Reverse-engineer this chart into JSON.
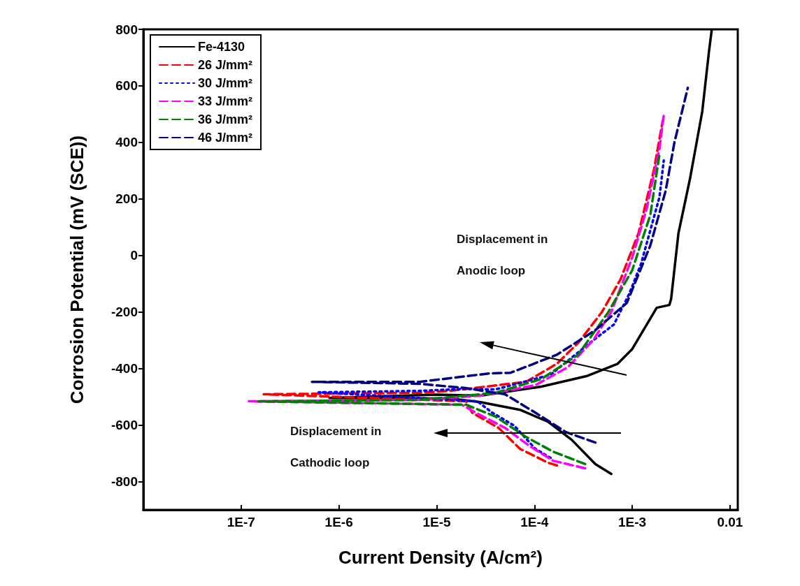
{
  "chart_data": {
    "type": "line",
    "xlabel": "Current Density (A/cm²)",
    "ylabel": "Corrosion Potential (mV (SCE))",
    "log": "x",
    "xlim": [
      1e-08,
      0.012
    ],
    "xticks": [
      {
        "value": 1e-07,
        "label": "1E-7"
      },
      {
        "value": 1e-06,
        "label": "1E-6"
      },
      {
        "value": 1e-05,
        "label": "1E-5"
      },
      {
        "value": 0.0001,
        "label": "1E-4"
      },
      {
        "value": 0.001,
        "label": "1E-3"
      },
      0.01
    ],
    "ylim": [
      -900,
      800
    ],
    "yticks": [
      -800,
      -600,
      -400,
      -200,
      0,
      200,
      400,
      600,
      800
    ],
    "grid": false,
    "legend": "top left",
    "marker": "none",
    "annotations": [
      "Displacement in",
      "Anodic loop",
      "Displacement in",
      "Cathodic loop"
    ],
    "series": [
      {
        "name": "Fe-4130",
        "color": "#000000",
        "line_style": "solid",
        "x": [
          0.00061,
          0.00042,
          0.00024,
          0.000137,
          7.1e-05,
          2.8e-05,
          1.37e-05,
          8e-07,
          1e-05,
          2.8e-05,
          0.000118,
          0.00034,
          0.00071,
          0.001,
          0.00178,
          0.0024,
          0.0025,
          0.00297,
          0.0039,
          0.0052,
          0.0061,
          0.0065
        ],
        "values": [
          -773,
          -738,
          -652,
          -588,
          -546,
          -519,
          -506,
          -504,
          -492,
          -496,
          -464,
          -427,
          -383,
          -331,
          -185,
          -175,
          -153,
          79,
          272,
          509,
          723,
          798
        ]
      },
      {
        "name": "26 J/mm²",
        "color": "#ff0000",
        "line_style": "dashed",
        "x": [
          0.00017,
          0.000137,
          7.1e-05,
          4.3e-05,
          2.3e-05,
          2e-05,
          1.7e-07,
          6.7e-06,
          1.37e-05,
          8.2e-05,
          0.00017,
          0.00028,
          0.00049,
          0.00076,
          0.00116,
          0.00167,
          0.00205
        ],
        "values": [
          -743,
          -733,
          -684,
          -610,
          -556,
          -516,
          -491,
          -486,
          -479,
          -447,
          -383,
          -309,
          -200,
          -84,
          79,
          304,
          477
        ]
      },
      {
        "name": "30 J/mm²",
        "color": "#0000ff",
        "line_style": "dotted",
        "x": [
          0.000146,
          0.000102,
          6.2e-05,
          3.7e-05,
          2.6e-05,
          6.2e-07,
          6.7e-06,
          1.9e-05,
          4e-05,
          0.000146,
          0.00037,
          0.00065,
          0.00093,
          0.00123,
          0.00153,
          0.0019,
          0.0021
        ],
        "values": [
          -716,
          -684,
          -602,
          -556,
          -516,
          -484,
          -479,
          -472,
          -474,
          -422,
          -309,
          -244,
          -136,
          -30,
          89,
          207,
          336
        ]
      },
      {
        "name": "33 J/mm²",
        "color": "#ff00ff",
        "line_style": "dashed",
        "x": [
          0.00033,
          0.000155,
          8.9e-05,
          5e-05,
          2.8e-05,
          1.8e-05,
          1.2e-07,
          6.7e-06,
          2.8e-05,
          0.000102,
          0.00022,
          0.0004,
          0.00061,
          0.001,
          0.0014,
          0.0019,
          0.0021
        ],
        "values": [
          -753,
          -726,
          -674,
          -610,
          -565,
          -528,
          -516,
          -511,
          -496,
          -459,
          -395,
          -299,
          -200,
          -7,
          163,
          378,
          496
        ]
      },
      {
        "name": "36 J/mm²",
        "color": "#008000",
        "line_style": "dashed",
        "x": [
          0.00033,
          0.000155,
          8.2e-05,
          4e-05,
          2e-05,
          1.5e-07,
          6.7e-06,
          4e-05,
          0.000118,
          0.00028,
          0.00057,
          0.001,
          0.00153,
          0.00178,
          0.0019
        ],
        "values": [
          -738,
          -694,
          -642,
          -570,
          -528,
          -516,
          -511,
          -486,
          -437,
          -351,
          -200,
          -52,
          143,
          294,
          358
        ]
      },
      {
        "name": "46 J/mm²",
        "color": "#000080",
        "line_style": "dashed",
        "x": [
          0.00042,
          0.00021,
          0.000102,
          5e-05,
          1.96e-05,
          6.7e-06,
          5.3e-07,
          6.7e-06,
          3.5e-05,
          5.7e-05,
          0.00017,
          0.00042,
          0.00088,
          0.00153,
          0.0022,
          0.0027,
          0.0037
        ],
        "values": [
          -662,
          -625,
          -556,
          -491,
          -469,
          -454,
          -447,
          -447,
          -417,
          -415,
          -351,
          -264,
          -168,
          35,
          230,
          400,
          593
        ]
      }
    ]
  }
}
